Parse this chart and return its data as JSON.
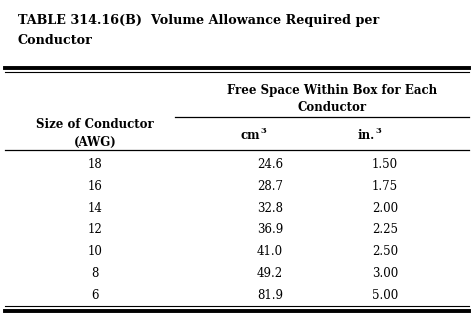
{
  "title_line1": "TABLE 314.16(B)  Volume Allowance Required per",
  "title_line2": "Conductor",
  "col_header_main_line1": "Free Space Within Box for Each",
  "col_header_main_line2": "Conductor",
  "col_header_left_line1": "Size of Conductor",
  "col_header_left_line2": "(AWG)",
  "rows": [
    [
      "18",
      "24.6",
      "1.50"
    ],
    [
      "16",
      "28.7",
      "1.75"
    ],
    [
      "14",
      "32.8",
      "2.00"
    ],
    [
      "12",
      "36.9",
      "2.25"
    ],
    [
      "10",
      "41.0",
      "2.50"
    ],
    [
      "8",
      "49.2",
      "3.00"
    ],
    [
      "6",
      "81.9",
      "5.00"
    ]
  ],
  "bg_color": "#ffffff",
  "text_color": "#000000",
  "line_color": "#000000",
  "fig_width": 4.74,
  "fig_height": 3.22,
  "dpi": 100
}
